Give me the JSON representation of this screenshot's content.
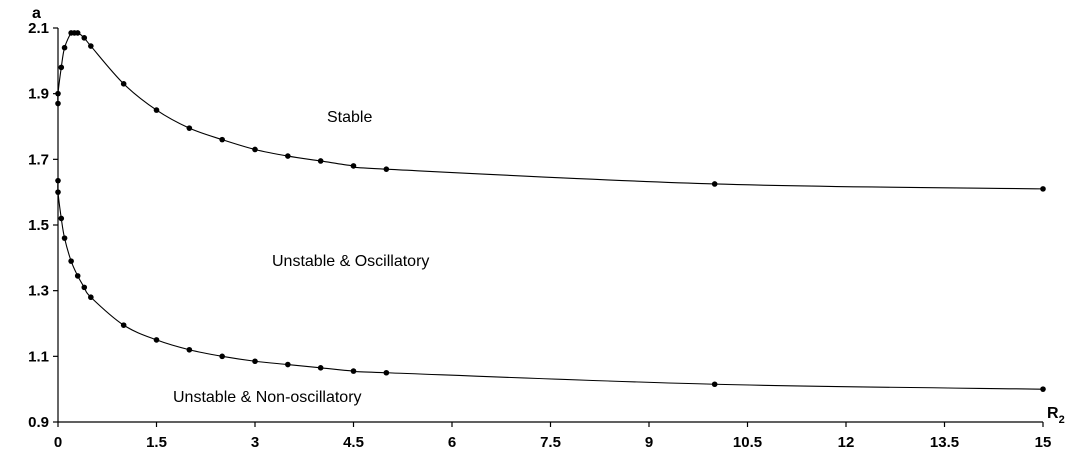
{
  "chart_data": {
    "type": "line",
    "xlabel": "R",
    "xlabel_sub": "2",
    "ylabel": "a",
    "xlim": [
      0,
      15
    ],
    "ylim": [
      0.9,
      2.1
    ],
    "x_ticks": [
      "0",
      "1.5",
      "3",
      "4.5",
      "6",
      "7.5",
      "9",
      "10.5",
      "12",
      "13.5",
      "15"
    ],
    "y_ticks": [
      "0.9",
      "1.1",
      "1.3",
      "1.5",
      "1.7",
      "1.9",
      "2.1"
    ],
    "grid": false,
    "legend": "none",
    "annotations": [
      "Stable",
      "Unstable & Oscillatory",
      "Unstable & Non-oscillatory"
    ],
    "series": [
      {
        "x": [
          0,
          0,
          0.05,
          0.1,
          0.2,
          0.25,
          0.3,
          0.4,
          0.5,
          1,
          1.5,
          2,
          2.5,
          3,
          3.5,
          4,
          4.5,
          5,
          10,
          15
        ],
        "y": [
          1.87,
          1.9,
          1.98,
          2.04,
          2.085,
          2.085,
          2.085,
          2.07,
          2.045,
          1.93,
          1.85,
          1.795,
          1.76,
          1.73,
          1.71,
          1.695,
          1.68,
          1.67,
          1.625,
          1.61
        ]
      },
      {
        "x": [
          0,
          0,
          0.05,
          0.1,
          0.2,
          0.3,
          0.4,
          0.5,
          1,
          1.5,
          2,
          2.5,
          3,
          3.5,
          4,
          4.5,
          5,
          10,
          15
        ],
        "y": [
          1.635,
          1.6,
          1.52,
          1.46,
          1.39,
          1.345,
          1.31,
          1.28,
          1.195,
          1.15,
          1.12,
          1.1,
          1.085,
          1.075,
          1.065,
          1.055,
          1.05,
          1.015,
          1.0
        ]
      }
    ]
  }
}
